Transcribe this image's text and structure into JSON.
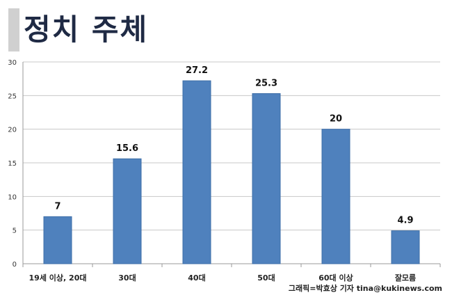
{
  "title": "정치 주체",
  "credit": "그래픽=박효상 기자 tina@kukinews.com",
  "colors": {
    "bar": "#4f81bd",
    "bar_edge": "#3e6ea8",
    "grid": "#c8c8c8",
    "axis": "#9a9a9a",
    "title_accent": "#d0d0d0"
  },
  "chart_data": {
    "type": "bar",
    "categories": [
      "19세 이상, 20대",
      "30대",
      "40대",
      "50대",
      "60대 이상",
      "잘모름"
    ],
    "values": [
      7,
      15.6,
      27.2,
      25.3,
      20,
      4.9
    ],
    "data_labels": [
      "7",
      "15.6",
      "27.2",
      "25.3",
      "20",
      "4.9"
    ],
    "ylim": [
      0,
      30
    ],
    "yticks": [
      0,
      5,
      10,
      15,
      20,
      25,
      30
    ],
    "grid": true,
    "legend": "none"
  }
}
